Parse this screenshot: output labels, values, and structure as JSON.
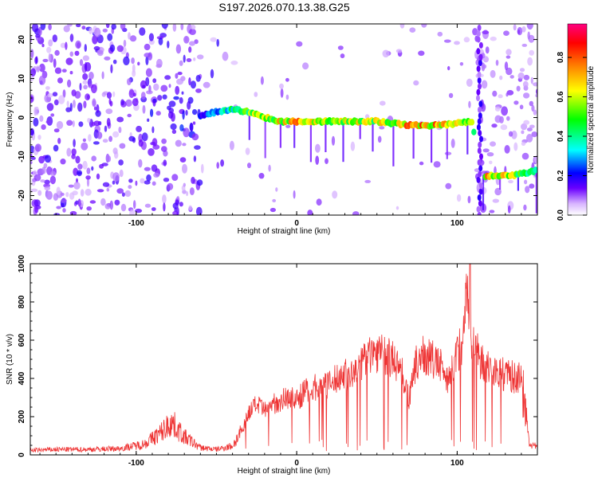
{
  "title": "S197.2026.070.13.38.G25",
  "chart_data": [
    {
      "type": "heatmap",
      "xlabel": "Height of straight line (km)",
      "ylabel": "Frequency (Hz)",
      "xlim": [
        -166,
        150
      ],
      "ylim": [
        -25,
        24
      ],
      "xticks": [
        -100,
        0,
        100
      ],
      "yticks": [
        -20,
        -10,
        0,
        10,
        20
      ],
      "colorbar": {
        "label": "Normalized spectral amplitude",
        "range": [
          0.0,
          0.97
        ],
        "ticks": [
          0.0,
          0.2,
          0.4,
          0.6,
          0.8
        ],
        "tick_labels": [
          "0.0",
          "0.2",
          "0.4",
          "0.6",
          "0.8"
        ],
        "colors": [
          "#ffffff",
          "#6a00ff",
          "#0000ff",
          "#00ffff",
          "#00ff00",
          "#ffff00",
          "#ff8000",
          "#ff0000",
          "#ff0080"
        ]
      },
      "ridge": {
        "x": [
          -60,
          -50,
          -40,
          -30,
          -20,
          -10,
          0,
          10,
          20,
          30,
          40,
          50,
          60,
          70,
          80,
          90,
          100,
          110,
          112,
          118,
          130,
          140,
          150
        ],
        "y": [
          0.5,
          1.5,
          2.0,
          1.5,
          0.0,
          -1.0,
          -1.0,
          -1.0,
          -1.0,
          -1.0,
          -1.0,
          -1.0,
          -1.5,
          -2.0,
          -2.0,
          -2.0,
          -1.5,
          -1.0,
          -14.0,
          -15.0,
          -15.0,
          -14.5,
          -13.5
        ],
        "amplitude": [
          0.25,
          0.35,
          0.5,
          0.6,
          0.7,
          0.75,
          0.8,
          0.75,
          0.7,
          0.7,
          0.7,
          0.7,
          0.75,
          0.85,
          0.85,
          0.8,
          0.7,
          0.6,
          0.5,
          0.8,
          0.75,
          0.6,
          0.5
        ]
      }
    },
    {
      "type": "line",
      "xlabel": "Height of straight line (km)",
      "ylabel": "SNR (10 * v/v)",
      "xlim": [
        -166,
        150
      ],
      "ylim": [
        0,
        1000
      ],
      "xticks": [
        -100,
        0,
        100
      ],
      "yticks": [
        0,
        200,
        400,
        600,
        800,
        1000
      ],
      "series": [
        {
          "name": "SNR",
          "color": "#ee3333",
          "x": [
            -166,
            -150,
            -130,
            -110,
            -95,
            -85,
            -78,
            -70,
            -60,
            -50,
            -40,
            -35,
            -30,
            -25,
            -20,
            -15,
            -10,
            -5,
            0,
            5,
            10,
            15,
            20,
            25,
            30,
            35,
            40,
            45,
            50,
            55,
            60,
            65,
            70,
            75,
            80,
            85,
            90,
            95,
            100,
            103,
            106,
            108,
            110,
            115,
            120,
            125,
            130,
            135,
            140,
            145,
            150
          ],
          "y": [
            25,
            30,
            30,
            35,
            60,
            120,
            180,
            100,
            40,
            30,
            50,
            120,
            230,
            280,
            240,
            280,
            300,
            320,
            300,
            350,
            360,
            400,
            380,
            420,
            450,
            430,
            500,
            560,
            570,
            550,
            520,
            480,
            300,
            520,
            550,
            520,
            480,
            420,
            560,
            620,
            900,
            720,
            600,
            520,
            480,
            460,
            440,
            430,
            420,
            60,
            40
          ]
        }
      ]
    }
  ]
}
